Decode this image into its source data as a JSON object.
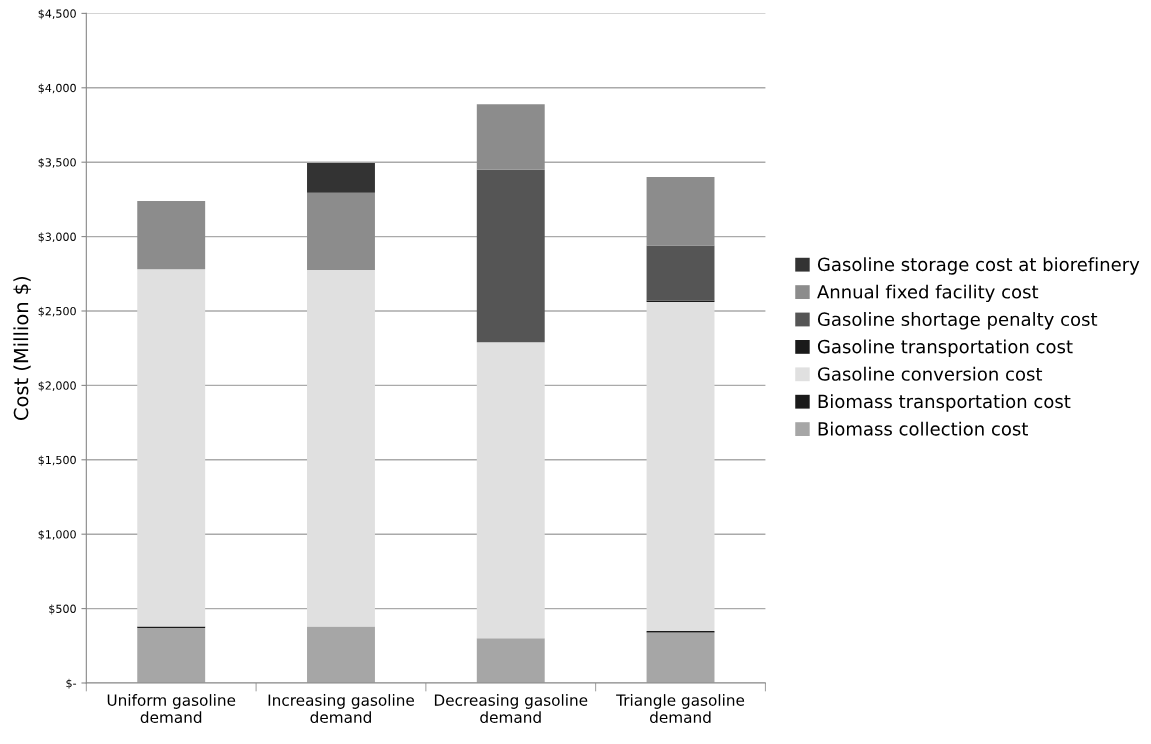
{
  "chart_data": {
    "type": "bar",
    "stacked": true,
    "ylabel": "Cost (Million $)",
    "categories": [
      "Uniform gasoline\ndemand",
      "Increasing gasoline\ndemand",
      "Decreasing gasoline\ndemand",
      "Triangle gasoline\ndemand"
    ],
    "series": [
      {
        "name": "Biomass collection cost",
        "color": "#a6a6a6",
        "values": [
          370,
          380,
          300,
          340
        ]
      },
      {
        "name": "Biomass transportation cost",
        "color": "#1a1a1a",
        "values": [
          10,
          0,
          0,
          10
        ]
      },
      {
        "name": "Gasoline conversion cost",
        "color": "#e0e0e0",
        "values": [
          2400,
          2395,
          1990,
          2210
        ]
      },
      {
        "name": "Gasoline transportation cost",
        "color": "#1a1a1a",
        "values": [
          0,
          0,
          0,
          10
        ]
      },
      {
        "name": "Gasoline shortage penalty cost",
        "color": "#555555",
        "values": [
          0,
          0,
          1160,
          370
        ]
      },
      {
        "name": "Annual fixed facility cost",
        "color": "#8c8c8c",
        "values": [
          460,
          520,
          440,
          460
        ]
      },
      {
        "name": "Gasoline storage cost at biorefinery",
        "color": "#333333",
        "values": [
          0,
          200,
          0,
          0
        ]
      }
    ],
    "ylim": [
      0,
      4500
    ],
    "yticks": [
      {
        "value": 0,
        "label": "$-"
      },
      {
        "value": 500,
        "label": "$500"
      },
      {
        "value": 1000,
        "label": "$1,000"
      },
      {
        "value": 1500,
        "label": "$1,500"
      },
      {
        "value": 2000,
        "label": "$2,000"
      },
      {
        "value": 2500,
        "label": "$2,500"
      },
      {
        "value": 3000,
        "label": "$3,000"
      },
      {
        "value": 3500,
        "label": "$3,500"
      },
      {
        "value": 4000,
        "label": "$4,000"
      },
      {
        "value": 4500,
        "label": "$4,500"
      }
    ],
    "grid": "y",
    "legend": "right"
  }
}
